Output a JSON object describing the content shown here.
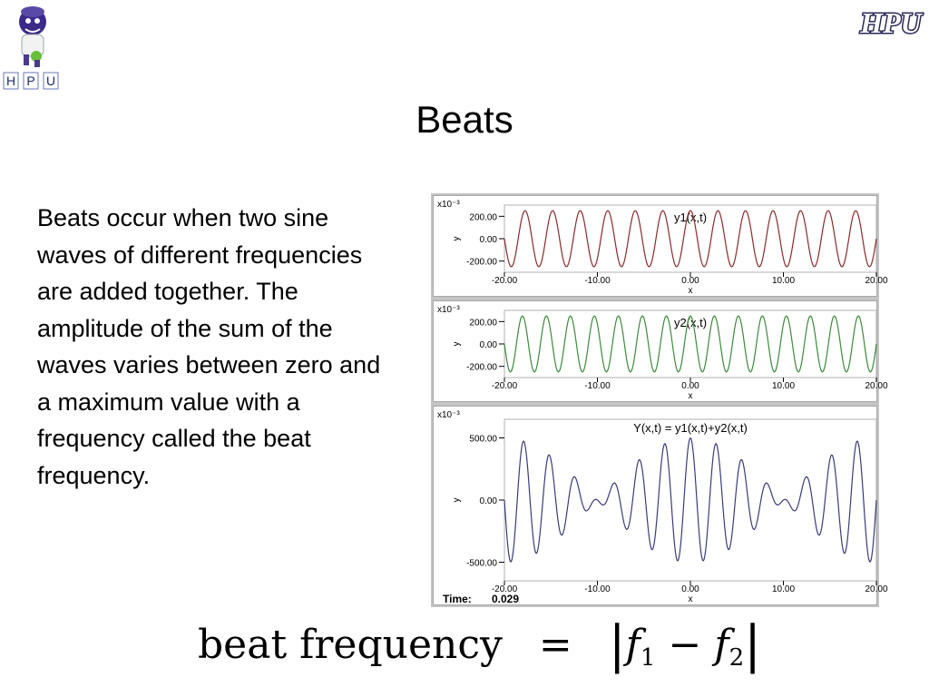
{
  "slide": {
    "title": "Beats",
    "body": "Beats occur when two sine waves of different frequencies are added together. The amplitude of the sum of the waves varies between zero and a maximum value with a frequency called the beat frequency."
  },
  "logos": {
    "left_letters": [
      "H",
      "P",
      "U"
    ],
    "right_text": "HPU"
  },
  "formula": {
    "lhs": "beat frequency",
    "equals": "=",
    "f": "f",
    "sub1": "1",
    "minus": "−",
    "sub2": "2",
    "bar": "|"
  },
  "chart_data": [
    {
      "type": "line",
      "title": "y1(x,t)",
      "xlabel": "x",
      "ylabel": "y",
      "scale_note": "x10⁻³",
      "xlim": [
        -20,
        20
      ],
      "ylim": [
        -300,
        300
      ],
      "xticks": [
        "-20.00",
        "-10.00",
        "0.00",
        "10.00",
        "20.00"
      ],
      "yticks": [
        "200.00",
        "0.00",
        "-200.00"
      ],
      "color": "#8b2a2a",
      "series": [
        {
          "amplitude": 250,
          "cycles_over_range": 13.5,
          "phase_deg": 180
        }
      ]
    },
    {
      "type": "line",
      "title": "y2(x,t)",
      "xlabel": "x",
      "ylabel": "y",
      "scale_note": "x10⁻³",
      "xlim": [
        -20,
        20
      ],
      "ylim": [
        -300,
        300
      ],
      "xticks": [
        "-20.00",
        "-10.00",
        "0.00",
        "10.00",
        "20.00"
      ],
      "yticks": [
        "200.00",
        "0.00",
        "-200.00"
      ],
      "color": "#3a8a3a",
      "series": [
        {
          "amplitude": 250,
          "cycles_over_range": 15.5,
          "phase_deg": 180
        }
      ]
    },
    {
      "type": "line",
      "title": "Y(x,t) = y1(x,t)+y2(x,t)",
      "xlabel": "x",
      "ylabel": "y",
      "scale_note": "x10⁻³",
      "xlim": [
        -20,
        20
      ],
      "ylim": [
        -650,
        650
      ],
      "xticks": [
        "-20.00",
        "-10.00",
        "0.00",
        "10.00",
        "20.00"
      ],
      "yticks": [
        "500.00",
        "0.00",
        "-500.00"
      ],
      "color": "#3b3b7a",
      "series": [
        {
          "component_cycles": [
            13.5,
            15.5
          ],
          "amplitude": 250,
          "phase_deg": 180
        }
      ],
      "time_label": "Time:",
      "time_value": "0.029"
    }
  ]
}
